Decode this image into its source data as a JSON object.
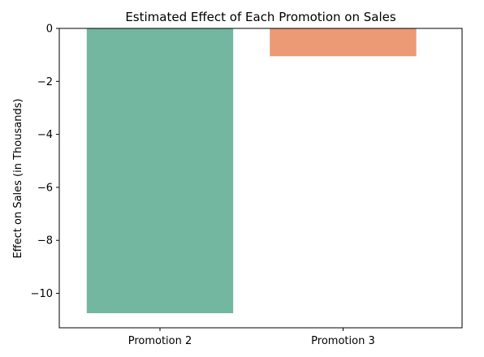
{
  "chart_data": {
    "type": "bar",
    "title": "Estimated Effect of Each Promotion on Sales",
    "xlabel": "",
    "ylabel": "Effect on Sales (in Thousands)",
    "categories": [
      "Promotion 2",
      "Promotion 3"
    ],
    "values": [
      -10.75,
      -1.05
    ],
    "colors": [
      "#73b7a1",
      "#ec9976"
    ],
    "ylim": [
      -11.3,
      0
    ],
    "yticks": [
      0,
      -2,
      -4,
      -6,
      -8,
      -10
    ],
    "ytick_labels": [
      "0",
      "−2",
      "−4",
      "−6",
      "−8",
      "−10"
    ],
    "grid": false,
    "legend": "none"
  }
}
